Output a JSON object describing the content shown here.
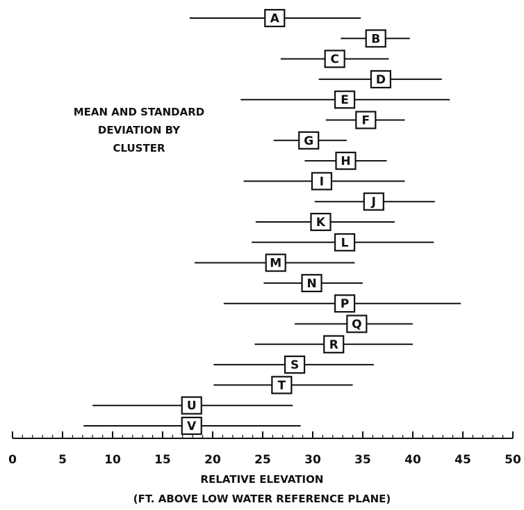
{
  "chart_data": {
    "type": "scatter",
    "subtype": "mean-and-standard-deviation-range-plot",
    "annotation": [
      "MEAN AND STANDARD",
      "DEVIATION BY",
      "CLUSTER"
    ],
    "xlabel": [
      "RELATIVE ELEVATION",
      "(FT. ABOVE LOW WATER REFERENCE PLANE)"
    ],
    "xlim": [
      0,
      50
    ],
    "xticks": [
      0,
      5,
      10,
      15,
      20,
      25,
      30,
      35,
      40,
      45,
      50
    ],
    "grid": false,
    "legend": "none",
    "series": [
      {
        "label": "A",
        "mean": 26.2,
        "low": 17.7,
        "high": 34.8
      },
      {
        "label": "B",
        "mean": 36.3,
        "low": 32.8,
        "high": 39.7
      },
      {
        "label": "C",
        "mean": 32.2,
        "low": 26.8,
        "high": 37.6
      },
      {
        "label": "D",
        "mean": 36.8,
        "low": 30.6,
        "high": 42.9
      },
      {
        "label": "E",
        "mean": 33.2,
        "low": 22.8,
        "high": 43.7
      },
      {
        "label": "F",
        "mean": 35.3,
        "low": 31.3,
        "high": 39.2
      },
      {
        "label": "G",
        "mean": 29.6,
        "low": 26.1,
        "high": 33.4
      },
      {
        "label": "H",
        "mean": 33.3,
        "low": 29.2,
        "high": 37.4
      },
      {
        "label": "I",
        "mean": 30.9,
        "low": 23.1,
        "high": 39.2
      },
      {
        "label": "J",
        "mean": 36.1,
        "low": 30.2,
        "high": 42.2
      },
      {
        "label": "K",
        "mean": 30.8,
        "low": 24.3,
        "high": 38.2
      },
      {
        "label": "L",
        "mean": 33.2,
        "low": 23.9,
        "high": 42.1
      },
      {
        "label": "M",
        "mean": 26.3,
        "low": 18.2,
        "high": 34.2
      },
      {
        "label": "N",
        "mean": 29.9,
        "low": 25.1,
        "high": 35.0
      },
      {
        "label": "P",
        "mean": 33.2,
        "low": 21.1,
        "high": 44.8
      },
      {
        "label": "Q",
        "mean": 34.4,
        "low": 28.2,
        "high": 40.0
      },
      {
        "label": "R",
        "mean": 32.1,
        "low": 24.2,
        "high": 40.0
      },
      {
        "label": "S",
        "mean": 28.2,
        "low": 20.1,
        "high": 36.1
      },
      {
        "label": "T",
        "mean": 26.9,
        "low": 20.1,
        "high": 34.0
      },
      {
        "label": "U",
        "mean": 17.9,
        "low": 8.0,
        "high": 28.0
      },
      {
        "label": "V",
        "mean": 17.9,
        "low": 7.1,
        "high": 28.8
      }
    ]
  }
}
